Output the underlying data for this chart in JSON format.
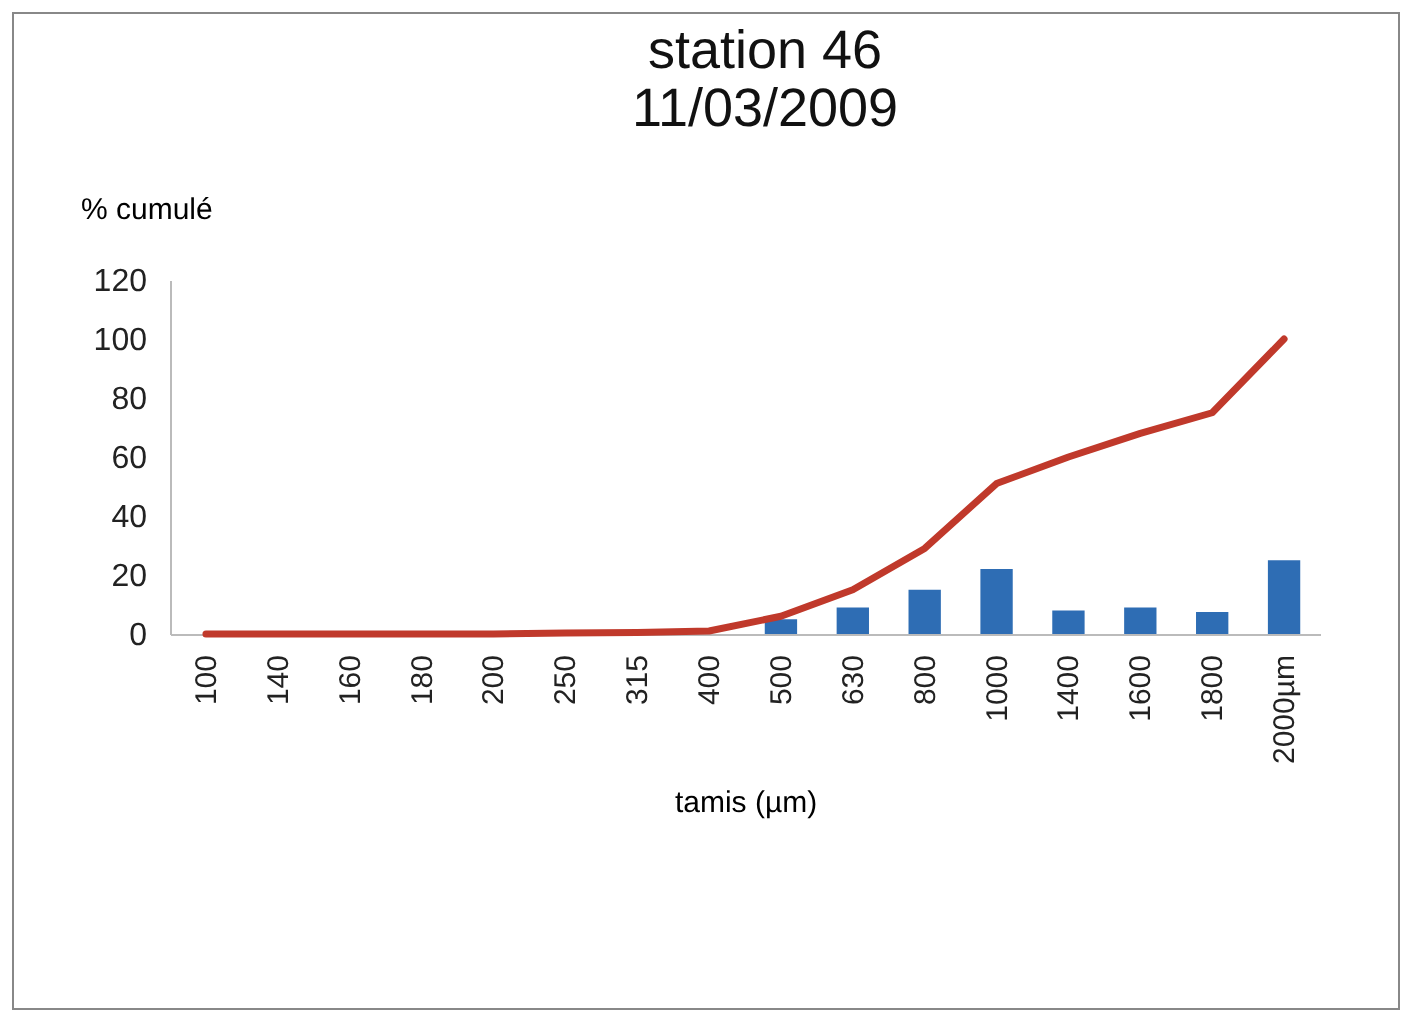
{
  "chart_data": {
    "type": "bar",
    "title": [
      "station 46",
      "11/03/2009"
    ],
    "ylabel": "% cumulé",
    "xlabel": "tamis (µm)",
    "categories": [
      "100",
      "140",
      "160",
      "180",
      "200",
      "250",
      "315",
      "400",
      "500",
      "630",
      "800",
      "1000",
      "1400",
      "1600",
      "1800",
      "2000µm"
    ],
    "series": [
      {
        "color": "#2e6db4",
        "values": [
          0,
          0,
          0,
          0,
          0,
          0,
          0,
          0,
          5,
          9,
          15,
          22,
          8,
          9,
          7.5,
          25
        ]
      },
      {
        "type": "line",
        "color": "#c0392b",
        "values": [
          0,
          0,
          0,
          0,
          0,
          0.3,
          0.5,
          1,
          6,
          15,
          29,
          51,
          60,
          68,
          75,
          100
        ]
      }
    ],
    "ylim": [
      0,
      120
    ],
    "yticks": [
      0,
      20,
      40,
      60,
      80,
      100,
      120
    ],
    "grid": false
  }
}
